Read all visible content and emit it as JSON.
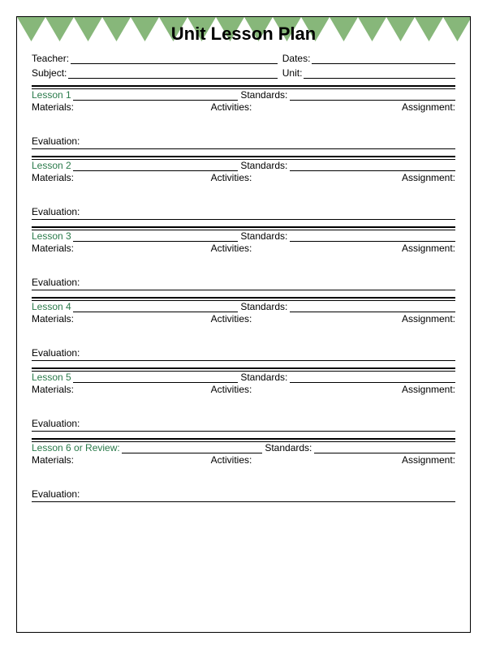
{
  "title": "Unit Lesson Plan",
  "header": {
    "teacher_label": "Teacher:",
    "dates_label": "Dates:",
    "subject_label": "Subject:",
    "unit_label": "Unit:"
  },
  "labels": {
    "standards": "Standards:",
    "materials": "Materials:",
    "activities": "Activities:",
    "assignment": "Assignment:",
    "evaluation": "Evaluation:"
  },
  "lessons": [
    {
      "name": "Lesson 1"
    },
    {
      "name": "Lesson 2"
    },
    {
      "name": "Lesson 3"
    },
    {
      "name": "Lesson 4"
    },
    {
      "name": "Lesson 5"
    },
    {
      "name": "Lesson 6 or Review:"
    }
  ],
  "style": {
    "accent_color": "#87b77a",
    "lesson_label_color": "#2a7a4a",
    "border_color": "#000000",
    "background": "#ffffff",
    "title_fontsize": 22,
    "body_fontsize": 12,
    "triangle_count": 16,
    "triangle_height": 30
  }
}
